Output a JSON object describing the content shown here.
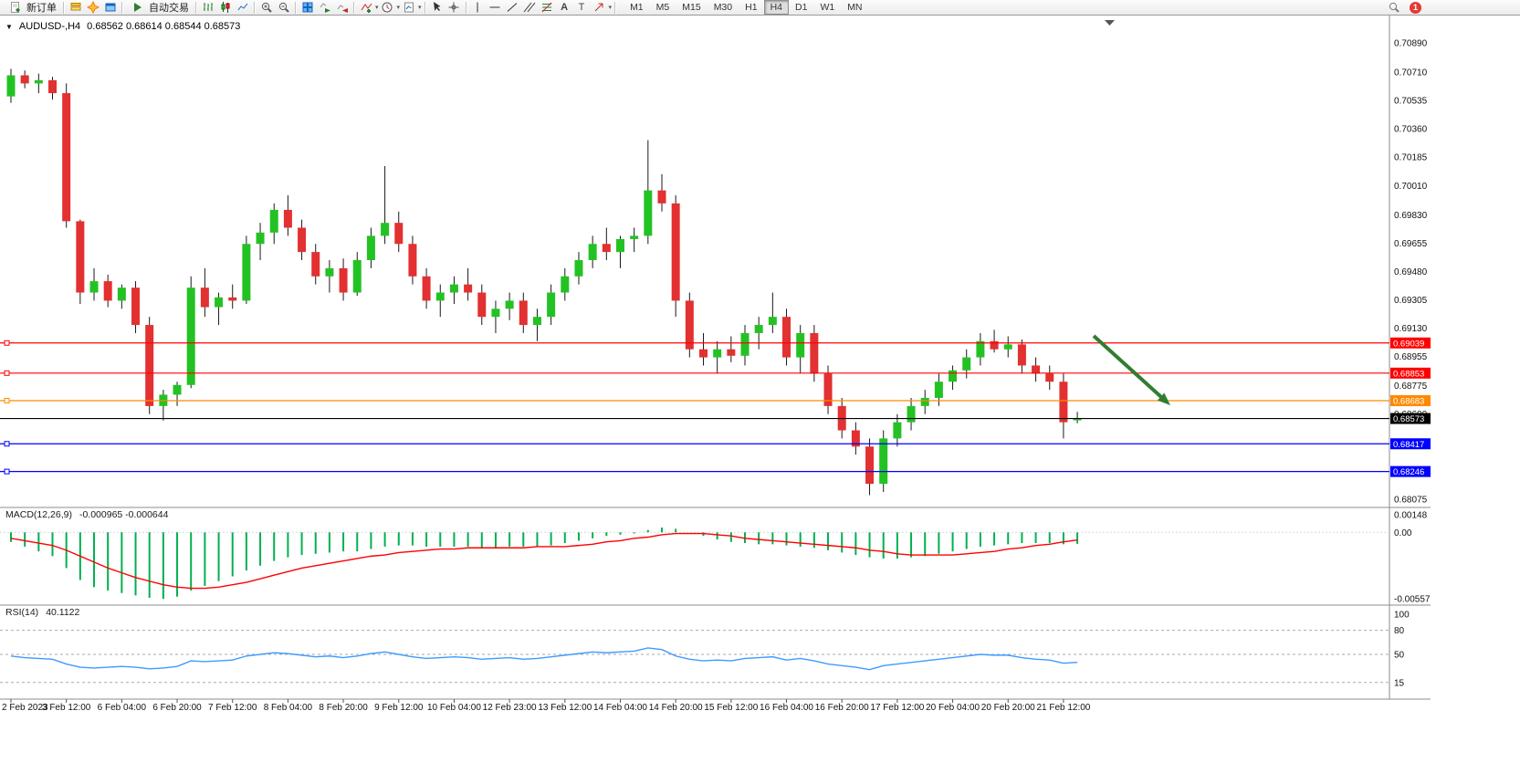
{
  "window": {
    "symbol_period": "AUDUSD-,H4",
    "ohlc_line": "0.68562 0.68614 0.68544 0.68573"
  },
  "toolbar": {
    "new_order": "新订单",
    "auto_trading": "自动交易",
    "timeframes": [
      "M1",
      "M5",
      "M15",
      "M30",
      "H1",
      "H4",
      "D1",
      "W1",
      "MN"
    ],
    "active_timeframe": "H4",
    "notification_count": "1"
  },
  "chart_data": [
    {
      "type": "candlestick",
      "symbol": "AUDUSD-",
      "timeframe": "H4",
      "current_ohlc": {
        "open": 0.68562,
        "high": 0.68614,
        "low": 0.68544,
        "close": 0.68573
      },
      "ylim": [
        0.68075,
        0.7089
      ],
      "y_ticks": [
        "0.70890",
        "0.70710",
        "0.70535",
        "0.70360",
        "0.70185",
        "0.70010",
        "0.69830",
        "0.69655",
        "0.69480",
        "0.69305",
        "0.69130",
        "0.68955",
        "0.68775",
        "0.68600",
        "0.68425",
        "0.68250",
        "0.68075"
      ],
      "x_labels": [
        "2 Feb 2023",
        "3 Feb 12:00",
        "6 Feb 04:00",
        "6 Feb 20:00",
        "7 Feb 12:00",
        "8 Feb 04:00",
        "8 Feb 20:00",
        "9 Feb 12:00",
        "10 Feb 04:00",
        "12 Feb 23:00",
        "13 Feb 12:00",
        "14 Feb 04:00",
        "14 Feb 20:00",
        "15 Feb 12:00",
        "16 Feb 04:00",
        "16 Feb 20:00",
        "17 Feb 12:00",
        "20 Feb 04:00",
        "20 Feb 20:00",
        "21 Feb 12:00"
      ],
      "candles": [
        [
          0.7056,
          0.7073,
          0.7052,
          0.7069
        ],
        [
          0.7069,
          0.7072,
          0.7061,
          0.7064
        ],
        [
          0.7064,
          0.707,
          0.7058,
          0.7066
        ],
        [
          0.7066,
          0.7068,
          0.7054,
          0.7058
        ],
        [
          0.7058,
          0.7064,
          0.6975,
          0.6979
        ],
        [
          0.6979,
          0.698,
          0.6928,
          0.6935
        ],
        [
          0.6935,
          0.695,
          0.693,
          0.6942
        ],
        [
          0.6942,
          0.6946,
          0.6926,
          0.693
        ],
        [
          0.693,
          0.694,
          0.6925,
          0.6938
        ],
        [
          0.6938,
          0.6942,
          0.691,
          0.6915
        ],
        [
          0.6915,
          0.692,
          0.686,
          0.6865
        ],
        [
          0.6865,
          0.6875,
          0.6856,
          0.6872
        ],
        [
          0.6872,
          0.688,
          0.6865,
          0.6878
        ],
        [
          0.6878,
          0.6945,
          0.6876,
          0.6938
        ],
        [
          0.6938,
          0.695,
          0.692,
          0.6926
        ],
        [
          0.6926,
          0.6935,
          0.6915,
          0.6932
        ],
        [
          0.6932,
          0.694,
          0.6925,
          0.693
        ],
        [
          0.693,
          0.697,
          0.6928,
          0.6965
        ],
        [
          0.6965,
          0.6978,
          0.6955,
          0.6972
        ],
        [
          0.6972,
          0.699,
          0.6965,
          0.6986
        ],
        [
          0.6986,
          0.6995,
          0.697,
          0.6975
        ],
        [
          0.6975,
          0.698,
          0.6955,
          0.696
        ],
        [
          0.696,
          0.6965,
          0.694,
          0.6945
        ],
        [
          0.6945,
          0.6955,
          0.6935,
          0.695
        ],
        [
          0.695,
          0.6956,
          0.693,
          0.6935
        ],
        [
          0.6935,
          0.696,
          0.6933,
          0.6955
        ],
        [
          0.6955,
          0.6975,
          0.695,
          0.697
        ],
        [
          0.697,
          0.7013,
          0.6965,
          0.6978
        ],
        [
          0.6978,
          0.6985,
          0.696,
          0.6965
        ],
        [
          0.6965,
          0.697,
          0.694,
          0.6945
        ],
        [
          0.6945,
          0.695,
          0.6925,
          0.693
        ],
        [
          0.693,
          0.694,
          0.692,
          0.6935
        ],
        [
          0.6935,
          0.6945,
          0.6928,
          0.694
        ],
        [
          0.694,
          0.695,
          0.693,
          0.6935
        ],
        [
          0.6935,
          0.694,
          0.6915,
          0.692
        ],
        [
          0.692,
          0.693,
          0.691,
          0.6925
        ],
        [
          0.6925,
          0.6935,
          0.6918,
          0.693
        ],
        [
          0.693,
          0.6935,
          0.691,
          0.6915
        ],
        [
          0.6915,
          0.6925,
          0.6905,
          0.692
        ],
        [
          0.692,
          0.694,
          0.6915,
          0.6935
        ],
        [
          0.6935,
          0.695,
          0.693,
          0.6945
        ],
        [
          0.6945,
          0.696,
          0.694,
          0.6955
        ],
        [
          0.6955,
          0.697,
          0.695,
          0.6965
        ],
        [
          0.6965,
          0.6975,
          0.6955,
          0.696
        ],
        [
          0.696,
          0.697,
          0.695,
          0.6968
        ],
        [
          0.6968,
          0.6975,
          0.696,
          0.697
        ],
        [
          0.697,
          0.7029,
          0.6965,
          0.6998
        ],
        [
          0.6998,
          0.7008,
          0.6985,
          0.699
        ],
        [
          0.699,
          0.6995,
          0.692,
          0.693
        ],
        [
          0.693,
          0.6935,
          0.6895,
          0.69
        ],
        [
          0.69,
          0.691,
          0.689,
          0.6895
        ],
        [
          0.6895,
          0.6905,
          0.6885,
          0.69
        ],
        [
          0.69,
          0.6908,
          0.6892,
          0.6896
        ],
        [
          0.6896,
          0.6915,
          0.689,
          0.691
        ],
        [
          0.691,
          0.692,
          0.69,
          0.6915
        ],
        [
          0.6915,
          0.6935,
          0.691,
          0.692
        ],
        [
          0.692,
          0.6925,
          0.689,
          0.6895
        ],
        [
          0.6895,
          0.6915,
          0.6885,
          0.691
        ],
        [
          0.691,
          0.6915,
          0.688,
          0.6885
        ],
        [
          0.6885,
          0.689,
          0.686,
          0.6865
        ],
        [
          0.6865,
          0.687,
          0.6845,
          0.685
        ],
        [
          0.685,
          0.6855,
          0.6835,
          0.684
        ],
        [
          0.684,
          0.6845,
          0.681,
          0.6817
        ],
        [
          0.6817,
          0.685,
          0.6812,
          0.6845
        ],
        [
          0.6845,
          0.686,
          0.684,
          0.6855
        ],
        [
          0.6855,
          0.687,
          0.685,
          0.6865
        ],
        [
          0.6865,
          0.6875,
          0.686,
          0.687
        ],
        [
          0.687,
          0.6885,
          0.6865,
          0.688
        ],
        [
          0.688,
          0.689,
          0.6875,
          0.6887
        ],
        [
          0.6887,
          0.69,
          0.6882,
          0.6895
        ],
        [
          0.6895,
          0.691,
          0.689,
          0.6905
        ],
        [
          0.6905,
          0.6912,
          0.6898,
          0.69
        ],
        [
          0.69,
          0.6908,
          0.6895,
          0.6903
        ],
        [
          0.6903,
          0.6906,
          0.6885,
          0.689
        ],
        [
          0.689,
          0.6895,
          0.688,
          0.6885
        ],
        [
          0.6885,
          0.689,
          0.6875,
          0.688
        ],
        [
          0.688,
          0.6885,
          0.6845,
          0.6855
        ],
        [
          0.68562,
          0.68614,
          0.68544,
          0.68573
        ]
      ],
      "hlines": [
        {
          "price": 0.69039,
          "label": "0.69039",
          "color": "#FF0000"
        },
        {
          "price": 0.68853,
          "label": "0.68853",
          "color": "#FF0000"
        },
        {
          "price": 0.68683,
          "label": "0.68683",
          "color": "#FF8A00"
        },
        {
          "price": 0.68573,
          "label": "0.68573",
          "color": "#000000",
          "current": true
        },
        {
          "price": 0.68417,
          "label": "0.68417",
          "color": "#0000FF"
        },
        {
          "price": 0.68246,
          "label": "0.68246",
          "color": "#0000FF"
        }
      ],
      "annotations": [
        {
          "type": "arrow",
          "color": "#2F7E2F",
          "from": [
            1198,
            351
          ],
          "to": [
            1282,
            427
          ]
        }
      ],
      "colors": {
        "bull": "#23C223",
        "bear": "#E33030",
        "wick": "#1a1a1a",
        "macd_hist": "#00B050",
        "macd_signal": "#FF0000",
        "rsi_line": "#3E9BFF"
      }
    },
    {
      "type": "macd",
      "label": "MACD(12,26,9)",
      "values_text": "-0.000965 -0.000644",
      "ylim": [
        -0.005577,
        0.00148
      ],
      "y_ticks": [
        "0.00148",
        "0.00",
        "-0.005577"
      ],
      "histogram": [
        -0.0008,
        -0.0012,
        -0.0016,
        -0.002,
        -0.003,
        -0.004,
        -0.0046,
        -0.0049,
        -0.0051,
        -0.0053,
        -0.0055,
        -0.0056,
        -0.0054,
        -0.0049,
        -0.0045,
        -0.0041,
        -0.0037,
        -0.0032,
        -0.0028,
        -0.0024,
        -0.0021,
        -0.0019,
        -0.0018,
        -0.0017,
        -0.0016,
        -0.0016,
        -0.0014,
        -0.0012,
        -0.0011,
        -0.0011,
        -0.0012,
        -0.0012,
        -0.0012,
        -0.0012,
        -0.0013,
        -0.0013,
        -0.0012,
        -0.0012,
        -0.0012,
        -0.0011,
        -0.0009,
        -0.0007,
        -0.0005,
        -0.0003,
        -0.0002,
        -0.0001,
        0.0002,
        0.0004,
        0.0003,
        0.0,
        -0.0003,
        -0.0006,
        -0.0008,
        -0.0009,
        -0.001,
        -0.001,
        -0.0011,
        -0.0012,
        -0.0013,
        -0.0015,
        -0.0017,
        -0.0019,
        -0.0021,
        -0.0022,
        -0.0022,
        -0.0021,
        -0.002,
        -0.0018,
        -0.0016,
        -0.0014,
        -0.0012,
        -0.0011,
        -0.001,
        -0.0009,
        -0.0009,
        -0.0009,
        -0.001,
        -0.000965
      ],
      "signal": [
        -0.0005,
        -0.0007,
        -0.0009,
        -0.0011,
        -0.0015,
        -0.002,
        -0.0025,
        -0.003,
        -0.0034,
        -0.0038,
        -0.0041,
        -0.0044,
        -0.0046,
        -0.0047,
        -0.0047,
        -0.0046,
        -0.0044,
        -0.0042,
        -0.0039,
        -0.0036,
        -0.0033,
        -0.003,
        -0.0028,
        -0.0026,
        -0.0024,
        -0.0022,
        -0.002,
        -0.0019,
        -0.0017,
        -0.0016,
        -0.0015,
        -0.0014,
        -0.0014,
        -0.0013,
        -0.0013,
        -0.0013,
        -0.0013,
        -0.0013,
        -0.0012,
        -0.0012,
        -0.0012,
        -0.0011,
        -0.001,
        -0.0008,
        -0.0007,
        -0.0005,
        -0.0004,
        -0.0002,
        -0.0001,
        -0.0001,
        -0.0001,
        -0.0002,
        -0.0003,
        -0.0005,
        -0.0006,
        -0.0007,
        -0.0008,
        -0.0009,
        -0.001,
        -0.0011,
        -0.0012,
        -0.0013,
        -0.0015,
        -0.0016,
        -0.0018,
        -0.0019,
        -0.0019,
        -0.0019,
        -0.0019,
        -0.0018,
        -0.0017,
        -0.0016,
        -0.0014,
        -0.0013,
        -0.0011,
        -0.001,
        -0.0008,
        -0.000644
      ]
    },
    {
      "type": "rsi",
      "label": "RSI(14)",
      "value_text": "40.1122",
      "levels": [
        "100",
        "80",
        "50",
        "15"
      ],
      "values": [
        48,
        46,
        45,
        44,
        38,
        34,
        33,
        34,
        35,
        34,
        32,
        33,
        35,
        42,
        41,
        42,
        43,
        48,
        50,
        52,
        51,
        49,
        47,
        48,
        46,
        48,
        51,
        53,
        50,
        47,
        45,
        46,
        47,
        46,
        44,
        45,
        46,
        44,
        45,
        47,
        49,
        51,
        53,
        52,
        53,
        54,
        58,
        56,
        48,
        44,
        42,
        43,
        42,
        45,
        46,
        47,
        43,
        45,
        42,
        38,
        36,
        34,
        31,
        36,
        38,
        40,
        42,
        44,
        46,
        48,
        50,
        49,
        49,
        46,
        44,
        43,
        39,
        40.1122
      ]
    }
  ]
}
